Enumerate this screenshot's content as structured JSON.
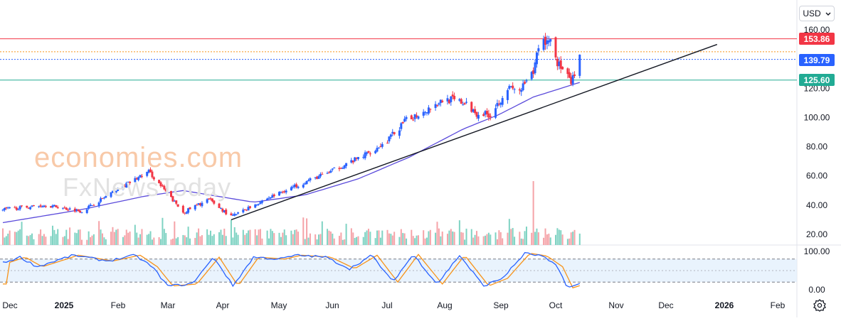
{
  "currency": {
    "label": "USD",
    "icon": "chevron-down-icon"
  },
  "watermark": {
    "line1": "economies.com",
    "line2": "FxNewsToday"
  },
  "price_tags": [
    {
      "value": "153.86",
      "color": "#f23645"
    },
    {
      "value": "139.79",
      "color": "#2962ff"
    },
    {
      "value": "125.60",
      "color": "#22ab94"
    }
  ],
  "price_axis": [
    "160.00",
    "140.00",
    "120.00",
    "100.00",
    "80.00",
    "60.00",
    "40.00",
    "20.00"
  ],
  "osc_axis": [
    "100.00",
    "0.00"
  ],
  "time_axis": [
    "Dec",
    "2025",
    "Feb",
    "Mar",
    "Apr",
    "May",
    "Jun",
    "Jul",
    "Aug",
    "Sep",
    "Oct",
    "Nov",
    "Dec",
    "2026",
    "Feb"
  ],
  "settings_icon": "gear-icon",
  "colors": {
    "up": "#2962ff",
    "down": "#f23645",
    "ma": "#5b4bdb",
    "trend": "#131722",
    "resistance": "#f23645",
    "support": "#22ab94",
    "stoch_k": "#2962ff",
    "stoch_d": "#f7931a"
  },
  "chart_data": {
    "type": "candlestick",
    "y_range": [
      20,
      160
    ],
    "x_range": [
      "2024-11-25",
      "2026-02-28"
    ],
    "horizontal_levels": [
      {
        "value": 153.86,
        "style": "solid",
        "color": "#f23645"
      },
      {
        "value": 145.0,
        "style": "dotted",
        "color": "#f7931a"
      },
      {
        "value": 139.79,
        "style": "dotted",
        "color": "#2962ff"
      },
      {
        "value": 125.6,
        "style": "solid",
        "color": "#22ab94"
      }
    ],
    "trendline": {
      "start": [
        "2025-04-07",
        30
      ],
      "end": [
        "2026-01-15",
        150
      ]
    },
    "close_anchors": [
      [
        "2024-11-25",
        37
      ],
      [
        "2024-12-20",
        40
      ],
      [
        "2025-01-10",
        36
      ],
      [
        "2025-01-27",
        48
      ],
      [
        "2025-02-18",
        63
      ],
      [
        "2025-03-10",
        35
      ],
      [
        "2025-03-25",
        44
      ],
      [
        "2025-04-07",
        32
      ],
      [
        "2025-04-25",
        43
      ],
      [
        "2025-05-12",
        52
      ],
      [
        "2025-06-02",
        62
      ],
      [
        "2025-06-20",
        72
      ],
      [
        "2025-07-05",
        82
      ],
      [
        "2025-07-18",
        98
      ],
      [
        "2025-08-01",
        107
      ],
      [
        "2025-08-10",
        113
      ],
      [
        "2025-08-20",
        110
      ],
      [
        "2025-08-28",
        103
      ],
      [
        "2025-09-05",
        102
      ],
      [
        "2025-09-15",
        120
      ],
      [
        "2025-09-22",
        118
      ],
      [
        "2025-09-30",
        130
      ],
      [
        "2025-10-03",
        150
      ],
      [
        "2025-10-10",
        154
      ],
      [
        "2025-10-14",
        138
      ],
      [
        "2025-10-22",
        123
      ],
      [
        "2025-10-27",
        140
      ]
    ],
    "ma_line": [
      [
        "2024-11-25",
        28
      ],
      [
        "2025-01-10",
        37
      ],
      [
        "2025-02-15",
        46
      ],
      [
        "2025-03-10",
        50
      ],
      [
        "2025-04-20",
        42
      ],
      [
        "2025-05-20",
        47
      ],
      [
        "2025-06-20",
        58
      ],
      [
        "2025-07-20",
        73
      ],
      [
        "2025-08-20",
        92
      ],
      [
        "2025-09-10",
        102
      ],
      [
        "2025-09-30",
        114
      ],
      [
        "2025-10-27",
        124
      ]
    ],
    "volume_scale_max": 100,
    "volume_spike": {
      "date": "2025-09-30",
      "value": 100
    },
    "stochastic": {
      "range": [
        0,
        100
      ],
      "bands": [
        20,
        80
      ],
      "k_anchors": [
        [
          "2024-11-25",
          70
        ],
        [
          "2024-12-05",
          85
        ],
        [
          "2024-12-15",
          60
        ],
        [
          "2025-01-05",
          90
        ],
        [
          "2025-01-25",
          75
        ],
        [
          "2025-02-10",
          90
        ],
        [
          "2025-02-20",
          60
        ],
        [
          "2025-03-01",
          10
        ],
        [
          "2025-03-15",
          15
        ],
        [
          "2025-03-28",
          85
        ],
        [
          "2025-04-08",
          10
        ],
        [
          "2025-04-20",
          85
        ],
        [
          "2025-05-05",
          80
        ],
        [
          "2025-05-15",
          90
        ],
        [
          "2025-06-01",
          85
        ],
        [
          "2025-06-15",
          55
        ],
        [
          "2025-06-28",
          90
        ],
        [
          "2025-07-10",
          20
        ],
        [
          "2025-07-22",
          92
        ],
        [
          "2025-08-05",
          15
        ],
        [
          "2025-08-18",
          90
        ],
        [
          "2025-09-01",
          10
        ],
        [
          "2025-09-12",
          30
        ],
        [
          "2025-09-25",
          95
        ],
        [
          "2025-10-05",
          88
        ],
        [
          "2025-10-14",
          60
        ],
        [
          "2025-10-20",
          5
        ],
        [
          "2025-10-27",
          15
        ]
      ]
    }
  }
}
